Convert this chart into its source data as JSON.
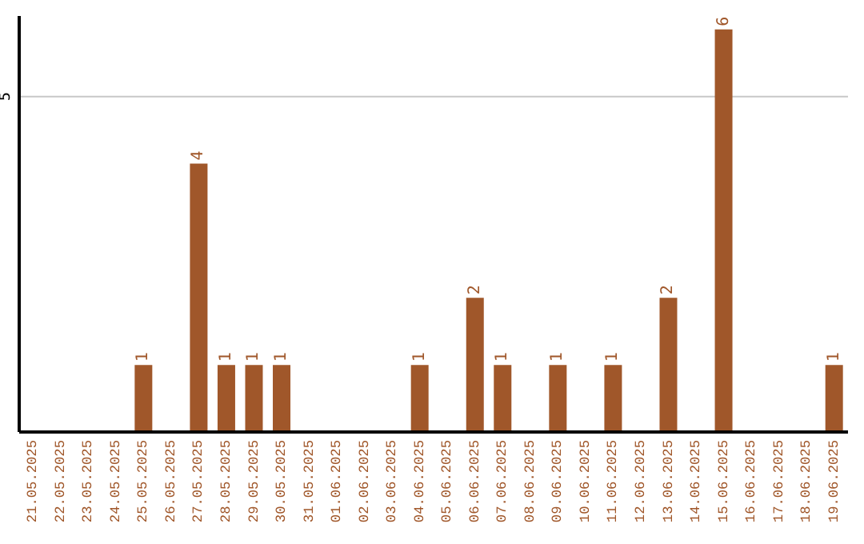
{
  "chart_data": {
    "type": "bar",
    "categories": [
      "21.05.2025",
      "22.05.2025",
      "23.05.2025",
      "24.05.2025",
      "25.05.2025",
      "26.05.2025",
      "27.05.2025",
      "28.05.2025",
      "29.05.2025",
      "30.05.2025",
      "31.05.2025",
      "01.06.2025",
      "02.06.2025",
      "03.06.2025",
      "04.06.2025",
      "05.06.2025",
      "06.06.2025",
      "07.06.2025",
      "08.06.2025",
      "09.06.2025",
      "10.06.2025",
      "11.06.2025",
      "12.06.2025",
      "13.06.2025",
      "14.06.2025",
      "15.06.2025",
      "16.06.2025",
      "17.06.2025",
      "18.06.2025",
      "19.06.2025"
    ],
    "values": [
      0,
      0,
      0,
      0,
      1,
      0,
      4,
      1,
      1,
      1,
      0,
      0,
      0,
      0,
      1,
      0,
      2,
      1,
      0,
      1,
      0,
      1,
      0,
      2,
      0,
      6,
      0,
      0,
      0,
      1
    ],
    "value_labels": [
      null,
      null,
      null,
      null,
      "1",
      null,
      "4",
      "1",
      "1",
      "1",
      null,
      null,
      null,
      null,
      "1",
      null,
      "2",
      "1",
      null,
      "1",
      null,
      "1",
      null,
      "2",
      null,
      "6",
      null,
      null,
      null,
      "1"
    ],
    "color": "#a0572a",
    "ylim": [
      0,
      6.2
    ],
    "yticks": [
      5
    ],
    "grid": "y"
  }
}
